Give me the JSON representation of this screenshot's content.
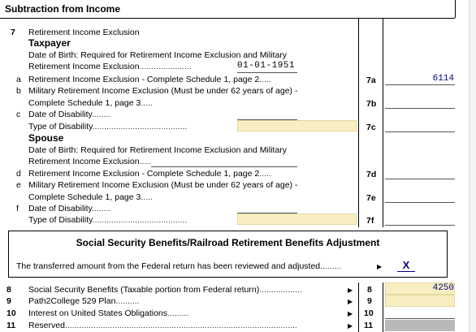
{
  "section_title": "Subtraction from Income",
  "line7": {
    "number": "7",
    "title": "Retirement Income Exclusion",
    "taxpayer_heading": "Taxpayer",
    "taxpayer_dob_text1": "Date of Birth: Required for Retirement Income Exclusion and Military",
    "taxpayer_dob_text2": "Retirement Income Exclusion",
    "taxpayer_dob_value": "01-01-1951",
    "a_letter": "a",
    "a_text": "Retirement Income Exclusion - Complete Schedule 1, page 2",
    "a_line": "7a",
    "a_value": "6114",
    "b_letter": "b",
    "b_text1": "Military Retirement Income Exclusion (Must be under 62 years of age) -",
    "b_text2": "Complete Schedule 1, page 3",
    "b_line": "7b",
    "c_letter": "c",
    "c_text1": "Date of Disability",
    "c_text2": "Type of Disability",
    "c_line": "7c",
    "spouse_heading": "Spouse",
    "spouse_dob_text1": "Date of Birth: Required for Retirement Income Exclusion and Military",
    "spouse_dob_text2": "Retirement Income Exclusion",
    "d_letter": "d",
    "d_text": "Retirement Income Exclusion - Complete Schedule 1, page 2",
    "d_line": "7d",
    "e_letter": "e",
    "e_text1": "Military Retirement Income Exclusion (Must be under 62 years of age) -",
    "e_text2": "Complete Schedule 1, page 3",
    "e_line": "7e",
    "f_letter": "f",
    "f_text1": "Date of Disability",
    "f_text2": "Type of Disability",
    "f_line": "7f"
  },
  "ss_box": {
    "title": "Social Security Benefits/Railroad Retirement Benefits Adjustment",
    "text": "The transferred amount from the Federal return has been reviewed and adjusted",
    "checkbox_mark": "X"
  },
  "lines": [
    {
      "num": "8",
      "text": "Social Security Benefits (Taxable portion from Federal return)",
      "line": "8",
      "value": "4250"
    },
    {
      "num": "9",
      "text": "Path2College 529 Plan",
      "line": "9",
      "value": ""
    },
    {
      "num": "10",
      "text": "Interest on United States Obligations",
      "line": "10",
      "value": ""
    },
    {
      "num": "11",
      "text": "Reserved",
      "line": "11",
      "value": ""
    }
  ],
  "colors": {
    "yellow_field": "#f7eec1",
    "value_blue": "#00008b",
    "grey_field": "#b9b9b9"
  }
}
